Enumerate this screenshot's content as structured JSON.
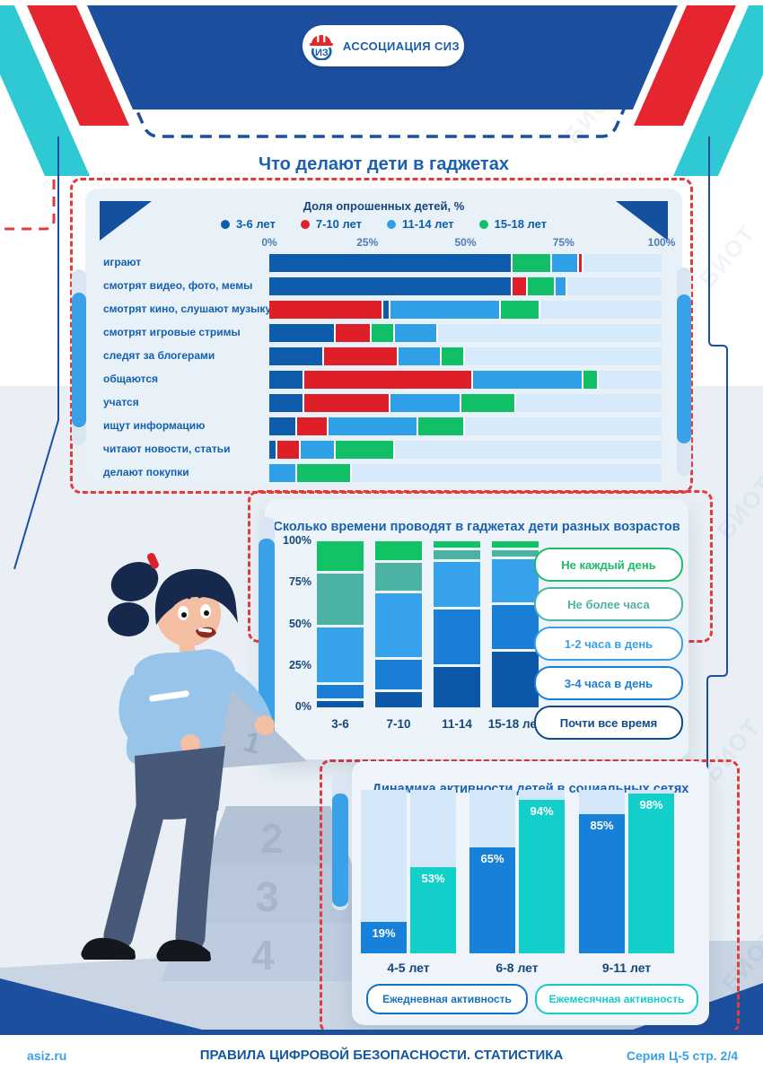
{
  "page": {
    "logo": {
      "text": "АССОЦИАЦИЯ СИЗ"
    },
    "watermark_text": "БИОТ",
    "footer": {
      "site": "asiz.ru",
      "title": "ПРАВИЛА ЦИФРОВОЙ БЕЗОПАСНОСТИ. СТАТИСТИКА",
      "series": "Серия Ц-5 стр. 2/4"
    }
  },
  "colors": {
    "palette": {
      "age_3_6": "#0e5cab",
      "age_7_10": "#df1f27",
      "age_11_14": "#2f9fe8",
      "age_15_18": "#10bf66",
      "time_almost_always": "#0d57a9",
      "time_3_4h": "#1a7ed6",
      "time_1_2h": "#36a2ec",
      "time_under_1h": "#4cb2a4",
      "time_not_daily": "#12c366",
      "daily": "#1780d8",
      "monthly": "#12cfc9"
    }
  },
  "chart_data": [
    {
      "type": "bar",
      "variant": "horizontal-stacked",
      "title": "Что делают дети в гаджетах",
      "subtitle": "Доля опрошенных детей, %",
      "xlim": [
        0,
        100
      ],
      "x_ticks": [
        "0%",
        "25%",
        "50%",
        "75%",
        "100%"
      ],
      "legend": [
        {
          "label": "3-6 лет",
          "color_key": "age_3_6"
        },
        {
          "label": "7-10 лет",
          "color_key": "age_7_10"
        },
        {
          "label": "11-14 лет",
          "color_key": "age_11_14"
        },
        {
          "label": "15-18 лет",
          "color_key": "age_15_18"
        }
      ],
      "rows": [
        {
          "label": "играют",
          "segments": [
            {
              "k": "age_3_6",
              "v": 62
            },
            {
              "k": "age_15_18",
              "v": 10
            },
            {
              "k": "age_11_14",
              "v": 7
            },
            {
              "k": "age_7_10",
              "v": 1
            }
          ]
        },
        {
          "label": "смотрят видео, фото, мемы",
          "segments": [
            {
              "k": "age_3_6",
              "v": 62
            },
            {
              "k": "age_7_10",
              "v": 4
            },
            {
              "k": "age_15_18",
              "v": 7
            },
            {
              "k": "age_11_14",
              "v": 3
            }
          ]
        },
        {
          "label": "смотрят кино, слушают музыку",
          "segments": [
            {
              "k": "age_7_10",
              "v": 29
            },
            {
              "k": "age_3_6",
              "v": 2
            },
            {
              "k": "age_11_14",
              "v": 28
            },
            {
              "k": "age_15_18",
              "v": 10
            }
          ]
        },
        {
          "label": "смотрят игровые стримы",
          "segments": [
            {
              "k": "age_3_6",
              "v": 17
            },
            {
              "k": "age_7_10",
              "v": 9
            },
            {
              "k": "age_15_18",
              "v": 6
            },
            {
              "k": "age_11_14",
              "v": 11
            }
          ]
        },
        {
          "label": "следят за блогерами",
          "segments": [
            {
              "k": "age_3_6",
              "v": 14
            },
            {
              "k": "age_7_10",
              "v": 19
            },
            {
              "k": "age_11_14",
              "v": 11
            },
            {
              "k": "age_15_18",
              "v": 6
            }
          ]
        },
        {
          "label": "общаются",
          "segments": [
            {
              "k": "age_3_6",
              "v": 9
            },
            {
              "k": "age_7_10",
              "v": 43
            },
            {
              "k": "age_11_14",
              "v": 28
            },
            {
              "k": "age_15_18",
              "v": 4
            }
          ]
        },
        {
          "label": "учатся",
          "segments": [
            {
              "k": "age_3_6",
              "v": 9
            },
            {
              "k": "age_7_10",
              "v": 22
            },
            {
              "k": "age_11_14",
              "v": 18
            },
            {
              "k": "age_15_18",
              "v": 14
            }
          ]
        },
        {
          "label": "ищут информацию",
          "segments": [
            {
              "k": "age_3_6",
              "v": 7
            },
            {
              "k": "age_7_10",
              "v": 8
            },
            {
              "k": "age_11_14",
              "v": 23
            },
            {
              "k": "age_15_18",
              "v": 12
            }
          ]
        },
        {
          "label": "читают новости, статьи",
          "segments": [
            {
              "k": "age_3_6",
              "v": 2
            },
            {
              "k": "age_7_10",
              "v": 6
            },
            {
              "k": "age_11_14",
              "v": 9
            },
            {
              "k": "age_15_18",
              "v": 15
            }
          ]
        },
        {
          "label": "делают покупки",
          "segments": [
            {
              "k": "age_11_14",
              "v": 7
            },
            {
              "k": "age_15_18",
              "v": 14
            }
          ]
        }
      ]
    },
    {
      "type": "bar",
      "variant": "vertical-stacked-100",
      "title": "Сколько времени проводят в гаджетах дети разных возрастов",
      "categories": [
        "3-6",
        "7-10",
        "11-14",
        "15-18 лет"
      ],
      "y_ticks": [
        "0%",
        "25%",
        "50%",
        "75%",
        "100%"
      ],
      "series": [
        {
          "name": "Почти все время",
          "color_key": "time_almost_always",
          "values": [
            4,
            10,
            26,
            36
          ]
        },
        {
          "name": "3-4 часа в день",
          "color_key": "time_3_4h",
          "values": [
            9,
            19,
            35,
            28
          ]
        },
        {
          "name": "1-2 часа в день",
          "color_key": "time_1_2h",
          "values": [
            35,
            41,
            29,
            28
          ]
        },
        {
          "name": "Не более часа",
          "color_key": "time_under_1h",
          "values": [
            33,
            18,
            6,
            4
          ]
        },
        {
          "name": "Не каждый день",
          "color_key": "time_not_daily",
          "values": [
            19,
            12,
            4,
            4
          ]
        }
      ],
      "legend": [
        {
          "label": "Не каждый день",
          "color": "#1fba6b"
        },
        {
          "label": "Не более часа",
          "color": "#4cb2a4"
        },
        {
          "label": "1-2 часа в день",
          "color": "#3aa0e8"
        },
        {
          "label": "3-4 часа в день",
          "color": "#1b7ed5"
        },
        {
          "label": "Почти все время",
          "color": "#134a85"
        }
      ]
    },
    {
      "type": "bar",
      "variant": "vertical-grouped",
      "title": "Динамика активности детей в социальных сетях",
      "categories": [
        "4-5 лет",
        "6-8 лет",
        "9-11 лет"
      ],
      "ylim": [
        0,
        100
      ],
      "series": [
        {
          "name": "Ежедневная активность",
          "color_key": "daily",
          "values": [
            19,
            65,
            85
          ]
        },
        {
          "name": "Ежемесячная активность",
          "color_key": "monthly",
          "values": [
            53,
            94,
            98
          ]
        }
      ],
      "value_label_format": "{v}%",
      "legend": [
        {
          "label": "Ежедневная активность",
          "color": "#1570c0"
        },
        {
          "label": "Ежемесячная активность",
          "color": "#14cdc8"
        }
      ]
    }
  ],
  "illustration": {
    "pyramid_numbers": [
      "1",
      "2",
      "3",
      "4"
    ]
  }
}
